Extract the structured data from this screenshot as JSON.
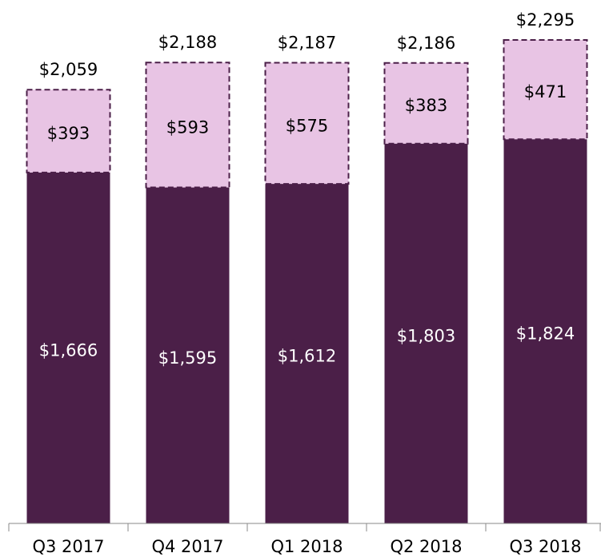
{
  "chart_data": {
    "type": "stacked-bar",
    "categories": [
      "Q3 2017",
      "Q4 2017",
      "Q1 2018",
      "Q2 2018",
      "Q3 2018"
    ],
    "series": [
      {
        "color": "#4b1f48",
        "label_color": "#ffffff",
        "values": [
          1666,
          1595,
          1612,
          1803,
          1824
        ],
        "value_labels": [
          "$1,666",
          "$1,595",
          "$1,612",
          "$1,803",
          "$1,824"
        ]
      },
      {
        "color": "#e8c4e4",
        "label_color": "#000000",
        "dashed": true,
        "values": [
          393,
          593,
          575,
          383,
          471
        ],
        "value_labels": [
          "$393",
          "$593",
          "$575",
          "$383",
          "$471"
        ]
      }
    ],
    "totals": [
      2059,
      2188,
      2187,
      2186,
      2295
    ],
    "total_labels": [
      "$2,059",
      "$2,188",
      "$2,187",
      "$2,186",
      "$2,295"
    ]
  }
}
